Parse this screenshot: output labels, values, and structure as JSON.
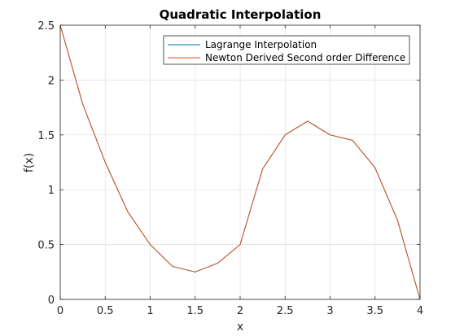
{
  "chart_data": {
    "type": "line",
    "title": "Quadratic Interpolation",
    "xlabel": "x",
    "ylabel": "f(x)",
    "xlim": [
      0,
      4
    ],
    "ylim": [
      0,
      2.5
    ],
    "xticks": [
      "0",
      "0.5",
      "1",
      "1.5",
      "2",
      "2.5",
      "3",
      "3.5",
      "4"
    ],
    "yticks": [
      "0",
      "0.5",
      "1",
      "1.5",
      "2",
      "2.5"
    ],
    "grid": true,
    "legend_position": "top-right",
    "series": [
      {
        "name": "Lagrange Interpolation",
        "color": "#0072BD",
        "x": [
          0,
          0.25,
          0.5,
          0.75,
          1,
          1.25,
          1.5,
          1.75,
          2,
          2.25,
          2.5,
          2.75,
          3,
          3.25,
          3.5,
          3.75,
          4
        ],
        "y": [
          2.5,
          1.78,
          1.25,
          0.8,
          0.5,
          0.3,
          0.25,
          0.33,
          0.5,
          1.19,
          1.5,
          1.625,
          1.5,
          1.45,
          1.2,
          0.72,
          0.0
        ]
      },
      {
        "name": "Newton Derived Second order Difference",
        "color": "#D95319",
        "x": [
          0,
          0.25,
          0.5,
          0.75,
          1,
          1.25,
          1.5,
          1.75,
          2,
          2.25,
          2.5,
          2.75,
          3,
          3.25,
          3.5,
          3.75,
          4
        ],
        "y": [
          2.5,
          1.78,
          1.25,
          0.8,
          0.5,
          0.3,
          0.25,
          0.33,
          0.5,
          1.19,
          1.5,
          1.625,
          1.5,
          1.45,
          1.2,
          0.72,
          0.0
        ]
      }
    ]
  }
}
